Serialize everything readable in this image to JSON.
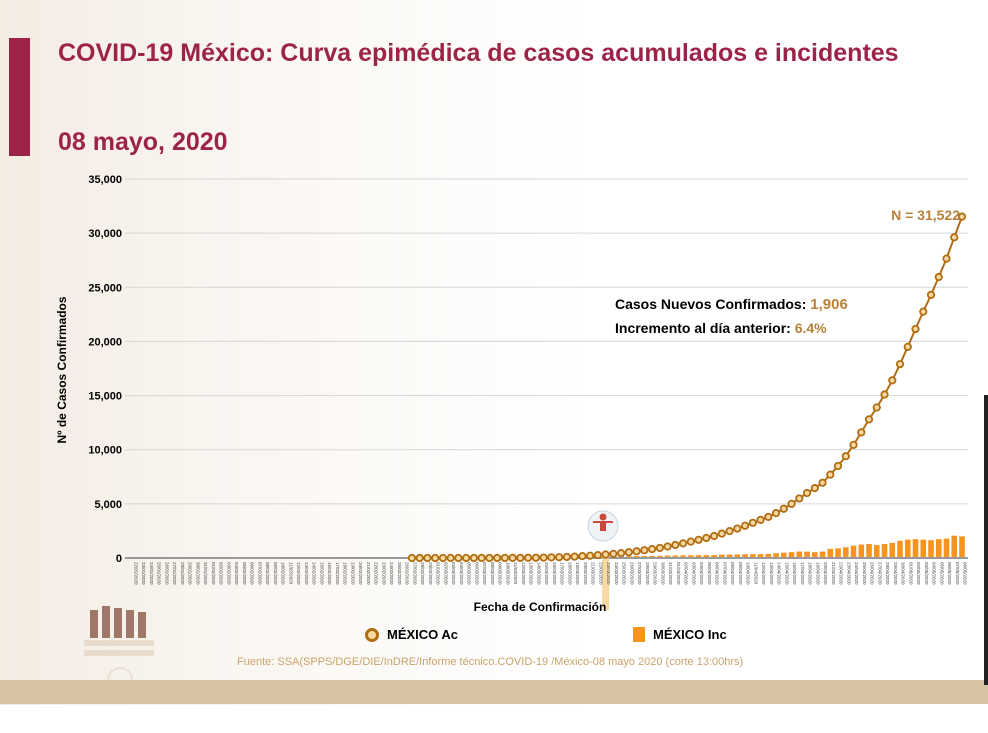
{
  "header": {
    "title": "COVID-19 México: Curva epimédica de casos acumulados e incidentes",
    "date": "08 mayo, 2020"
  },
  "colors": {
    "brand": "#9d2449",
    "line": "#b06d13",
    "marker_fill": "#f6d8a0",
    "bars": "#f7941d",
    "highlight": "#f5c97a",
    "annotation_value": "#b8813a"
  },
  "chart_data": {
    "type": "bar+line",
    "xlabel": "Fecha de Confirmación",
    "ylabel": "Nº de Casos Confirmados",
    "ylim": [
      0,
      35000
    ],
    "yticks": [
      "0",
      "5,000",
      "10,000",
      "15,000",
      "20,000",
      "25,000",
      "30,000",
      "35,000"
    ],
    "ytick_values": [
      0,
      5000,
      10000,
      15000,
      20000,
      25000,
      30000,
      35000
    ],
    "grid": "horizontal",
    "legend_position": "bottom",
    "highlight_date": "23/03/2020",
    "categories": [
      "22/01/2020",
      "23/01/2020",
      "24/01/2020",
      "25/01/2020",
      "26/01/2020",
      "27/01/2020",
      "28/01/2020",
      "29/01/2020",
      "30/01/2020",
      "31/01/2020",
      "01/02/2020",
      "02/02/2020",
      "03/02/2020",
      "04/02/2020",
      "05/02/2020",
      "06/02/2020",
      "07/02/2020",
      "08/02/2020",
      "09/02/2020",
      "10/02/2020",
      "11/02/2020",
      "12/02/2020",
      "13/02/2020",
      "14/02/2020",
      "15/02/2020",
      "16/02/2020",
      "17/02/2020",
      "18/02/2020",
      "19/02/2020",
      "20/02/2020",
      "21/02/2020",
      "22/02/2020",
      "23/02/2020",
      "24/02/2020",
      "25/02/2020",
      "26/02/2020",
      "27/02/2020",
      "28/02/2020",
      "29/02/2020",
      "01/03/2020",
      "02/03/2020",
      "03/03/2020",
      "04/03/2020",
      "05/03/2020",
      "06/03/2020",
      "07/03/2020",
      "08/03/2020",
      "09/03/2020",
      "10/03/2020",
      "11/03/2020",
      "12/03/2020",
      "13/03/2020",
      "14/03/2020",
      "15/03/2020",
      "16/03/2020",
      "17/03/2020",
      "18/03/2020",
      "19/03/2020",
      "20/03/2020",
      "21/03/2020",
      "22/03/2020",
      "23/03/2020",
      "24/03/2020",
      "25/03/2020",
      "26/03/2020",
      "27/03/2020",
      "28/03/2020",
      "29/03/2020",
      "30/03/2020",
      "31/03/2020",
      "01/04/2020",
      "02/04/2020",
      "03/04/2020",
      "04/04/2020",
      "05/04/2020",
      "06/04/2020",
      "07/04/2020",
      "08/04/2020",
      "09/04/2020",
      "10/04/2020",
      "11/04/2020",
      "12/04/2020",
      "13/04/2020",
      "14/04/2020",
      "15/04/2020",
      "16/04/2020",
      "17/04/2020",
      "18/04/2020",
      "19/04/2020",
      "20/04/2020",
      "21/04/2020",
      "22/04/2020",
      "23/04/2020",
      "24/04/2020",
      "25/04/2020",
      "26/04/2020",
      "27/04/2020",
      "28/04/2020",
      "29/04/2020",
      "30/04/2020",
      "01/05/2020",
      "02/05/2020",
      "03/05/2020",
      "04/05/2020",
      "05/05/2020",
      "06/05/2020",
      "07/05/2020",
      "08/05/2020"
    ],
    "series": [
      {
        "name": "MÉXICO Ac",
        "type": "line",
        "values": [
          null,
          null,
          null,
          null,
          null,
          null,
          null,
          null,
          null,
          null,
          null,
          null,
          null,
          null,
          null,
          null,
          null,
          null,
          null,
          null,
          null,
          null,
          null,
          null,
          null,
          null,
          null,
          null,
          null,
          null,
          null,
          null,
          null,
          null,
          null,
          null,
          1,
          1,
          2,
          2,
          2,
          2,
          3,
          3,
          4,
          4,
          5,
          6,
          8,
          10,
          14,
          20,
          28,
          40,
          55,
          75,
          100,
          130,
          170,
          215,
          265,
          320,
          380,
          450,
          530,
          620,
          720,
          820,
          930,
          1060,
          1200,
          1350,
          1510,
          1680,
          1850,
          2030,
          2250,
          2480,
          2720,
          2980,
          3250,
          3520,
          3800,
          4150,
          4550,
          5000,
          5500,
          6000,
          6450,
          6950,
          7700,
          8500,
          9400,
          10450,
          11600,
          12800,
          13900,
          15100,
          16400,
          17900,
          19500,
          21150,
          22750,
          24300,
          25950,
          27650,
          29616,
          31522
        ]
      },
      {
        "name": "MÉXICO Inc",
        "type": "bar",
        "values": [
          null,
          null,
          null,
          null,
          null,
          null,
          null,
          null,
          null,
          null,
          null,
          null,
          null,
          null,
          null,
          null,
          null,
          null,
          null,
          null,
          null,
          null,
          null,
          null,
          null,
          null,
          null,
          null,
          null,
          null,
          null,
          null,
          null,
          null,
          null,
          null,
          1,
          0,
          1,
          0,
          0,
          0,
          1,
          0,
          1,
          0,
          1,
          1,
          2,
          2,
          4,
          6,
          8,
          12,
          15,
          20,
          25,
          30,
          40,
          45,
          50,
          55,
          60,
          70,
          80,
          90,
          100,
          100,
          110,
          130,
          140,
          150,
          160,
          170,
          170,
          180,
          220,
          230,
          240,
          260,
          270,
          270,
          280,
          350,
          400,
          450,
          500,
          500,
          450,
          500,
          750,
          800,
          900,
          1050,
          1150,
          1200,
          1100,
          1200,
          1300,
          1500,
          1600,
          1650,
          1600,
          1550,
          1650,
          1700,
          1966,
          1906
        ]
      }
    ],
    "annotations": {
      "total": "N = 31,522",
      "new_cases_label": "Casos Nuevos Confirmados: ",
      "new_cases_value": "1,906",
      "increase_label": "Incremento al día anterior: ",
      "increase_value": "6.4%"
    }
  },
  "footer": {
    "source": "Fuente: SSA(SPPS/DGE/DIE/InDRE/Informe técnico.COVID-19 /México-08 mayo 2020 (corte 13:00hrs)"
  }
}
